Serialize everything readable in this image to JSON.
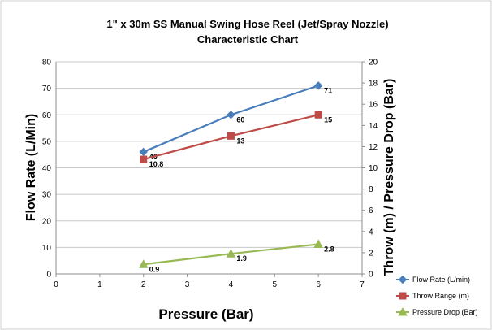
{
  "chart_data": {
    "type": "line",
    "title": "1\" x 30m SS Manual Swing Hose Reel (Jet/Spray Nozzle)",
    "subtitle": "Characteristic Chart",
    "xlabel": "Pressure (Bar)",
    "ylabel": "Flow Rate (L/Min)",
    "y2label": "Throw (m) / Pressure Drop (Bar)",
    "xlim": [
      0,
      7
    ],
    "ylim": [
      0,
      80
    ],
    "y2lim": [
      0,
      20
    ],
    "x_ticks": [
      "0",
      "1",
      "2",
      "3",
      "4",
      "5",
      "6",
      "7"
    ],
    "y_ticks": [
      "0",
      "10",
      "20",
      "30",
      "40",
      "50",
      "60",
      "70",
      "80"
    ],
    "y2_ticks": [
      "0",
      "2",
      "4",
      "6",
      "8",
      "10",
      "12",
      "14",
      "16",
      "18",
      "20"
    ],
    "grid": "horizontal",
    "legend_position": "right",
    "x": [
      2,
      4,
      6
    ],
    "series": [
      {
        "name": "Flow Rate (L/min)",
        "axis": "left",
        "color": "#4a7ebb",
        "marker": "diamond",
        "values": [
          46,
          60,
          71
        ],
        "labels": [
          "46",
          "60",
          "71"
        ]
      },
      {
        "name": "Throw Range (m)",
        "axis": "right",
        "color": "#be4b48",
        "marker": "square",
        "values": [
          10.8,
          13,
          15
        ],
        "labels": [
          "10.8",
          "13",
          "15"
        ]
      },
      {
        "name": "Pressure Drop (Bar)",
        "axis": "right",
        "color": "#98b954",
        "marker": "triangle",
        "values": [
          0.9,
          1.9,
          2.8
        ],
        "labels": [
          "0.9",
          "1.9",
          "2.8"
        ]
      }
    ]
  }
}
